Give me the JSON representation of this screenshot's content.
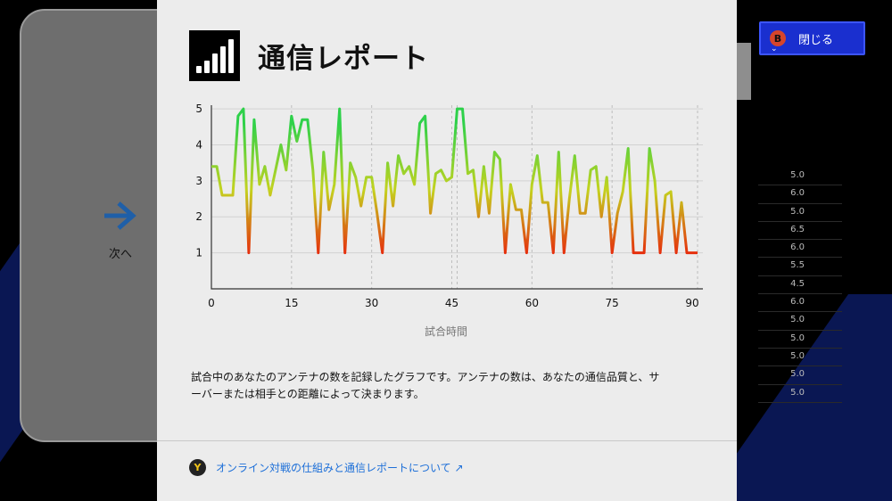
{
  "left_card": {
    "next_label": "次へ"
  },
  "close_button": {
    "badge": "B",
    "label": "閉じる"
  },
  "score_list": [
    "5.0",
    "6.0",
    "5.0",
    "6.5",
    "6.0",
    "5.5",
    "4.5",
    "6.0",
    "5.0",
    "5.0",
    "5.0",
    "5.0",
    "5.0"
  ],
  "report": {
    "title": "通信レポート",
    "description_line1": "試合中のあなたのアンテナの数を記録したグラフです。アンテナの数は、あなたの通信品質と、サ",
    "description_line2": "ーバーまたは相手との距離によって決まります。",
    "link_badge": "Y",
    "link_text": "オンライン対戦の仕組みと通信レポートについて ↗"
  },
  "chart_data": {
    "type": "line",
    "xlabel": "試合時間",
    "ylabel": "",
    "xlim": [
      0,
      92
    ],
    "ylim": [
      0,
      5.3
    ],
    "xticks": [
      0,
      15,
      30,
      45,
      60,
      75,
      90
    ],
    "yticks": [
      1,
      2,
      3,
      4,
      5
    ],
    "vlines_dashed": [
      15,
      30,
      45,
      46,
      60,
      75,
      91
    ],
    "colors": {
      "high": "#2ed14a",
      "mid": "#c4d21f",
      "low": "#e7260c",
      "grid": "#d2d2d2"
    },
    "x": [
      0,
      1,
      2,
      3,
      4,
      5,
      6,
      7,
      8,
      9,
      10,
      11,
      12,
      13,
      14,
      15,
      16,
      17,
      18,
      19,
      20,
      21,
      22,
      23,
      24,
      25,
      26,
      27,
      28,
      29,
      30,
      31,
      32,
      33,
      34,
      35,
      36,
      37,
      38,
      39,
      40,
      41,
      42,
      43,
      44,
      45,
      46,
      47,
      48,
      49,
      50,
      51,
      52,
      53,
      54,
      55,
      56,
      57,
      58,
      59,
      60,
      61,
      62,
      63,
      64,
      65,
      66,
      67,
      68,
      69,
      70,
      71,
      72,
      73,
      74,
      75,
      76,
      77,
      78,
      79,
      80,
      81,
      82,
      83,
      84,
      85,
      86,
      87,
      88,
      89,
      90,
      91
    ],
    "y": [
      3.4,
      3.4,
      2.6,
      2.6,
      2.6,
      4.8,
      5.0,
      1.0,
      4.7,
      2.9,
      3.4,
      2.6,
      3.3,
      4.0,
      3.3,
      4.8,
      4.1,
      4.7,
      4.7,
      3.3,
      1.0,
      3.8,
      2.2,
      2.9,
      5.0,
      1.0,
      3.5,
      3.1,
      2.3,
      3.1,
      3.1,
      2.1,
      1.0,
      3.5,
      2.3,
      3.7,
      3.2,
      3.4,
      2.9,
      4.6,
      4.8,
      2.1,
      3.2,
      3.3,
      3.0,
      3.1,
      5.0,
      5.0,
      3.2,
      3.3,
      2.0,
      3.4,
      2.1,
      3.8,
      3.6,
      1.0,
      2.9,
      2.2,
      2.2,
      1.0,
      2.9,
      3.7,
      2.4,
      2.4,
      1.0,
      3.8,
      1.0,
      2.5,
      3.7,
      2.1,
      2.1,
      3.3,
      3.4,
      2.0,
      3.1,
      1.0,
      2.1,
      2.7,
      3.9,
      1.0,
      1.0,
      1.0,
      3.9,
      3.0,
      1.0,
      2.6,
      2.7,
      1.0,
      2.4,
      1.0,
      1.0,
      1.0
    ]
  }
}
